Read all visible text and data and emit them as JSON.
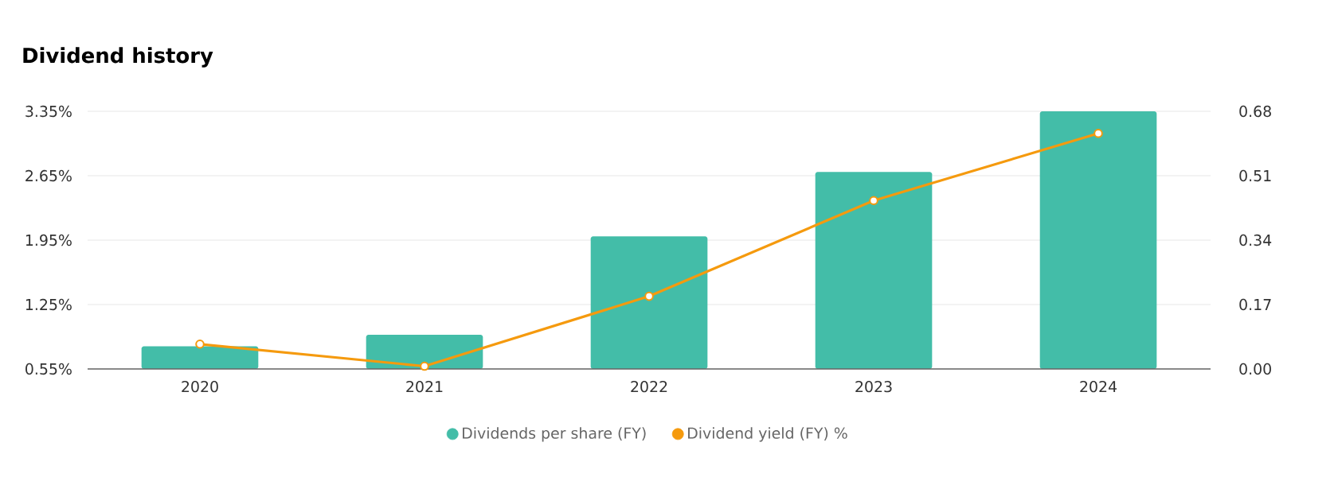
{
  "chart_data": {
    "type": "bar",
    "title": "Dividend history",
    "categories": [
      "2020",
      "2021",
      "2022",
      "2023",
      "2024"
    ],
    "series": [
      {
        "name": "Dividends per share (FY)",
        "axis": "y2",
        "color": "#43bda8",
        "values": [
          0.06,
          0.09,
          0.35,
          0.52,
          0.68
        ]
      },
      {
        "name": "Dividend yield (FY) %",
        "type": "line",
        "axis": "y",
        "color": "#f59a0e",
        "values": [
          0.82,
          0.58,
          1.34,
          2.38,
          3.11
        ]
      }
    ],
    "ylim": [
      0.55,
      3.35
    ],
    "yticks": [
      {
        "value": 0.55,
        "label": "0.55%"
      },
      {
        "value": 1.25,
        "label": "1.25%"
      },
      {
        "value": 1.95,
        "label": "1.95%"
      },
      {
        "value": 2.65,
        "label": "2.65%"
      },
      {
        "value": 3.35,
        "label": "3.35%"
      }
    ],
    "y2lim": [
      0,
      0.68
    ],
    "y2ticks": [
      {
        "value": 0,
        "label": "0.00"
      },
      {
        "value": 0.17,
        "label": "0.17"
      },
      {
        "value": 0.34,
        "label": "0.34"
      },
      {
        "value": 0.51,
        "label": "0.51"
      },
      {
        "value": 0.68,
        "label": "0.68"
      }
    ],
    "grid": "y",
    "legend": "bottom",
    "marker": "circle",
    "line_style": "solid"
  }
}
